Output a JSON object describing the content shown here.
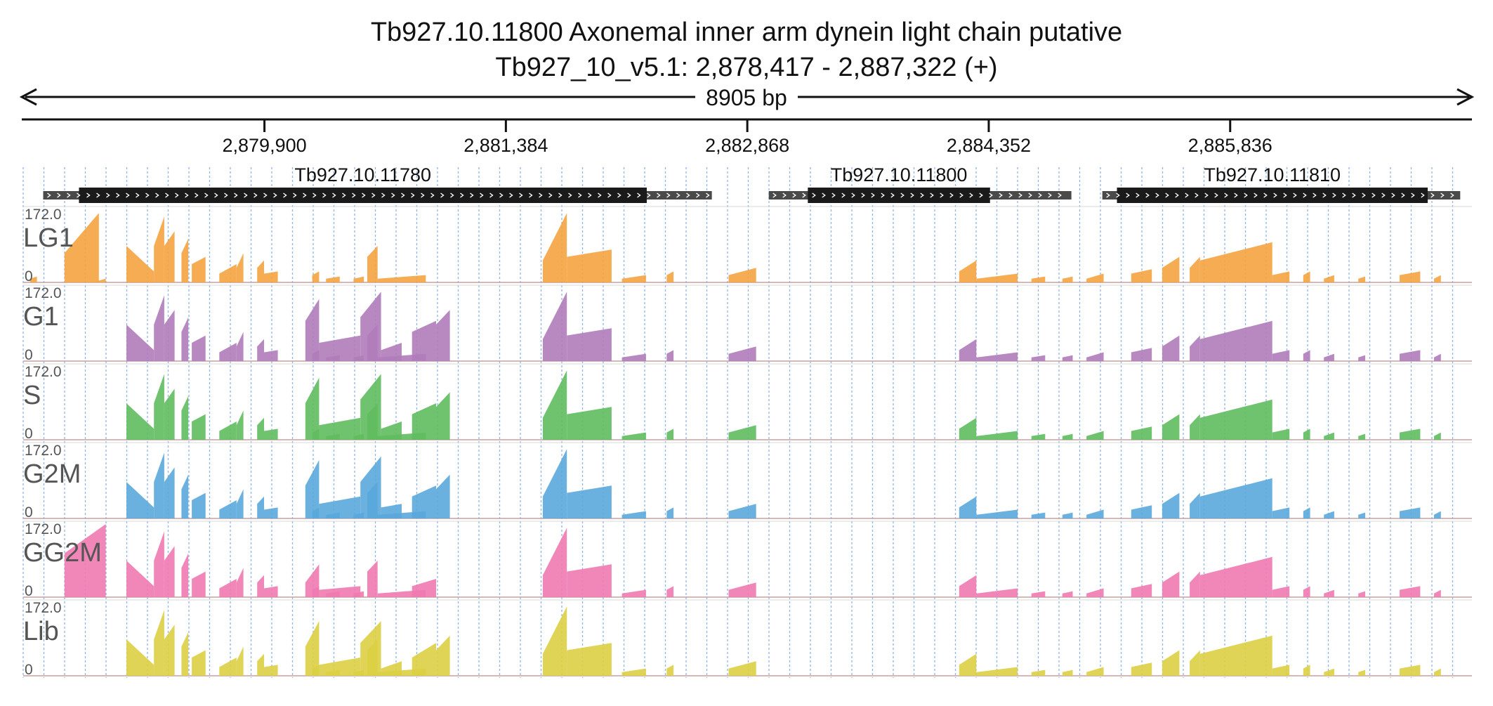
{
  "header": {
    "title": "Tb927.10.11800  Axonemal inner arm dynein light chain  putative",
    "location": "Tb927_10_v5.1: 2,878,417 - 2,887,322 (+)",
    "span_label": "8905 bp"
  },
  "chart_data": {
    "type": "area",
    "chromosome": "Tb927_10_v5.1",
    "x_range": [
      2878417,
      2887322
    ],
    "ticks": [
      {
        "pos": 2879900,
        "label": "2,879,900"
      },
      {
        "pos": 2881384,
        "label": "2,881,384"
      },
      {
        "pos": 2882868,
        "label": "2,882,868"
      },
      {
        "pos": 2884352,
        "label": "2,884,352"
      },
      {
        "pos": 2885836,
        "label": "2,885,836"
      }
    ],
    "genes": [
      {
        "name": "Tb927.10.11780",
        "utr5_start": 2878540,
        "cds_start": 2878760,
        "cds_end": 2882250,
        "utr3_end": 2882650
      },
      {
        "name": "Tb927.10.11800",
        "utr5_start": 2883000,
        "cds_start": 2883240,
        "cds_end": 2884360,
        "utr3_end": 2884860
      },
      {
        "name": "Tb927.10.11810",
        "utr5_start": 2885050,
        "cds_start": 2885140,
        "cds_end": 2887050,
        "utr3_end": 2887250
      }
    ],
    "ylim": [
      0,
      172.0
    ],
    "y_max_label": "172.0",
    "y_min_label": "0",
    "series": [
      {
        "name": "LG1",
        "color": "#f4a340"
      },
      {
        "name": "G1",
        "color": "#b07cba"
      },
      {
        "name": "S",
        "color": "#5fbd5e"
      },
      {
        "name": "G2M",
        "color": "#5aa8dc"
      },
      {
        "name": "GG2M",
        "color": "#f07ab0"
      },
      {
        "name": "Lib",
        "color": "#dccf44"
      }
    ],
    "grid": true
  }
}
